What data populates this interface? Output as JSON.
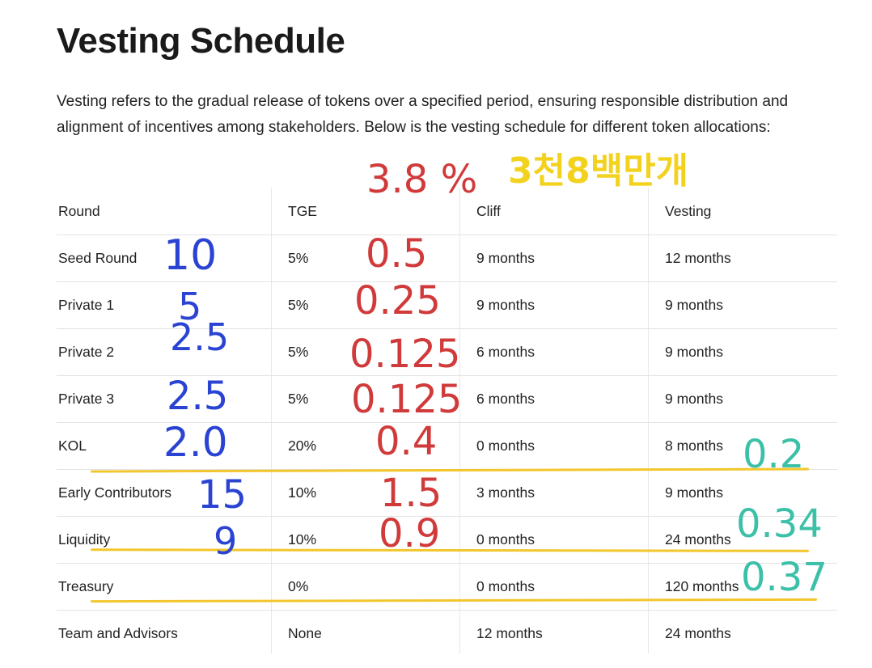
{
  "title": "Vesting Schedule",
  "intro": "Vesting refers to the gradual release of tokens over a specified period, ensuring responsible distribution and alignment of incentives among stakeholders. Below is the vesting schedule for different token allocations:",
  "table": {
    "headers": [
      "Round",
      "TGE",
      "Cliff",
      "Vesting"
    ],
    "rows": [
      [
        "Seed Round",
        "5%",
        "9 months",
        "12 months"
      ],
      [
        "Private 1",
        "5%",
        "9 months",
        "9 months"
      ],
      [
        "Private 2",
        "5%",
        "6 months",
        "9 months"
      ],
      [
        "Private 3",
        "5%",
        "6 months",
        "9 months"
      ],
      [
        "KOL",
        "20%",
        "0 months",
        "8 months"
      ],
      [
        "Early Contributors",
        "10%",
        "3 months",
        "9 months"
      ],
      [
        "Liquidity",
        "10%",
        "0 months",
        "24 months"
      ],
      [
        "Treasury",
        "0%",
        "0 months",
        "120 months"
      ],
      [
        "Team and Advisors",
        "None",
        "12 months",
        "24 months"
      ]
    ]
  },
  "annotations": {
    "header_red": "3.8 %",
    "header_yellow": "3천8백만개",
    "blue": [
      "10",
      "5",
      "2.5",
      "2.5",
      "2.0",
      "15",
      "9"
    ],
    "red": [
      "0.5",
      "0.25",
      "0.125",
      "0.125",
      "0.4",
      "1.5",
      "0.9"
    ],
    "teal": [
      "0.2",
      "0.34",
      "0.37"
    ]
  },
  "colors": {
    "annotation_red": "#d03a3a",
    "annotation_blue": "#2a43d3",
    "annotation_teal": "#3cc0a8",
    "annotation_yellow": "#f3d21e"
  }
}
